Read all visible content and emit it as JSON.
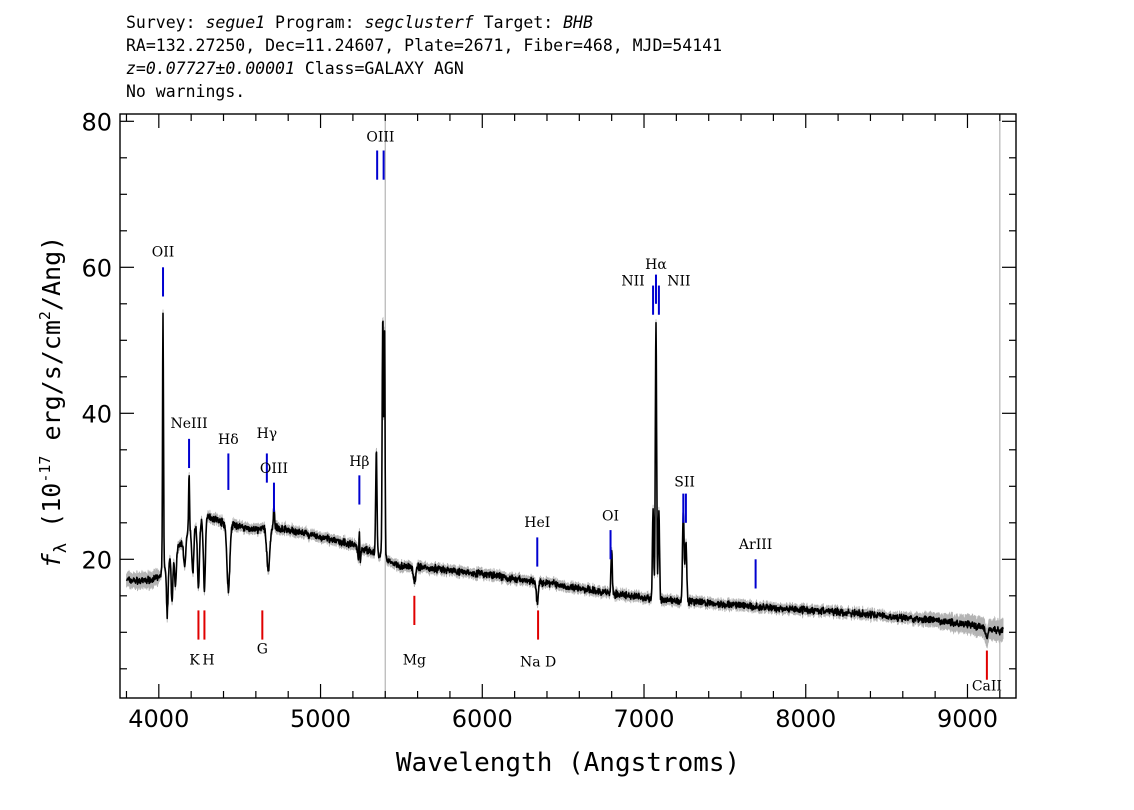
{
  "header": {
    "line1": {
      "survey_label": "Survey: ",
      "survey": "segue1",
      "program_label": " Program: ",
      "program": "segclusterf",
      "target_label": " Target: ",
      "target": "BHB"
    },
    "line2": "RA=132.27250, Dec=11.24607, Plate=2671, Fiber=468, MJD=54141",
    "line3": {
      "z": "z=0.07727±0.00001",
      "class": " Class=GALAXY AGN"
    },
    "line4": "No warnings."
  },
  "chart_data": {
    "type": "line",
    "xlabel": "Wavelength (Angstroms)",
    "ylabel": "f_λ (10^-17 erg/s/cm^2/Ang)",
    "xlim": [
      3760,
      9300
    ],
    "ylim": [
      1,
      81
    ],
    "xticks": [
      4000,
      5000,
      6000,
      7000,
      8000,
      9000
    ],
    "yticks": [
      20,
      40,
      60,
      80
    ],
    "vline_x": 5400,
    "colors": {
      "spectrum": "#000000",
      "error": "#b4b4b4",
      "emission": "#0000d0",
      "absorption": "#e00000",
      "vline": "#b4b4b4"
    },
    "continuum_points": [
      [
        3800,
        17.2
      ],
      [
        3900,
        17.0
      ],
      [
        4000,
        17.5
      ],
      [
        4100,
        21
      ],
      [
        4200,
        24
      ],
      [
        4300,
        26
      ],
      [
        4400,
        25
      ],
      [
        4500,
        24.5
      ],
      [
        4600,
        24
      ],
      [
        4700,
        24.5
      ],
      [
        4800,
        24
      ],
      [
        4900,
        23.5
      ],
      [
        5000,
        23
      ],
      [
        5100,
        22.5
      ],
      [
        5200,
        22
      ],
      [
        5300,
        21.2
      ],
      [
        5400,
        20
      ],
      [
        5500,
        19
      ],
      [
        5600,
        19
      ],
      [
        5800,
        18.5
      ],
      [
        6000,
        18
      ],
      [
        6200,
        17.3
      ],
      [
        6400,
        16.8
      ],
      [
        6600,
        16
      ],
      [
        6800,
        15.3
      ],
      [
        7000,
        14.8
      ],
      [
        7200,
        14.3
      ],
      [
        7400,
        14
      ],
      [
        7600,
        13.7
      ],
      [
        7800,
        13.3
      ],
      [
        8000,
        13.1
      ],
      [
        8200,
        12.8
      ],
      [
        8400,
        12.4
      ],
      [
        8600,
        12
      ],
      [
        8800,
        11.6
      ],
      [
        9000,
        11.1
      ],
      [
        9200,
        10.2
      ]
    ],
    "features": [
      {
        "center": 4026,
        "amp": 35,
        "width": 3
      },
      {
        "center": 4052,
        "amp": -7,
        "width": 5
      },
      {
        "center": 4082,
        "amp": -6,
        "width": 5
      },
      {
        "center": 4103,
        "amp": -5,
        "width": 5
      },
      {
        "center": 4160,
        "amp": -4,
        "width": 6
      },
      {
        "center": 4187,
        "amp": 8,
        "width": 3
      },
      {
        "center": 4210,
        "amp": -6,
        "width": 6
      },
      {
        "center": 4245,
        "amp": -9,
        "width": 6
      },
      {
        "center": 4282,
        "amp": -10,
        "width": 6
      },
      {
        "center": 4430,
        "amp": -9,
        "width": 9
      },
      {
        "center": 4677,
        "amp": -6,
        "width": 9
      },
      {
        "center": 4712,
        "amp": 3,
        "width": 3
      },
      {
        "center": 5240,
        "amp": -4,
        "width": 6
      },
      {
        "center": 5240,
        "amp": 6,
        "width": 3
      },
      {
        "center": 5345,
        "amp": 14,
        "width": 4
      },
      {
        "center": 5385,
        "amp": 33,
        "width": 4
      },
      {
        "center": 5396,
        "amp": 30,
        "width": 3
      },
      {
        "center": 5580,
        "amp": -2,
        "width": 8
      },
      {
        "center": 6340,
        "amp": -3,
        "width": 6
      },
      {
        "center": 6800,
        "amp": 6,
        "width": 4
      },
      {
        "center": 7056,
        "amp": 12,
        "width": 4
      },
      {
        "center": 7074,
        "amp": 38,
        "width": 4
      },
      {
        "center": 7092,
        "amp": 12,
        "width": 4
      },
      {
        "center": 7243,
        "amp": 12,
        "width": 5
      },
      {
        "center": 7259,
        "amp": 8,
        "width": 5
      },
      {
        "center": 9120,
        "amp": -1.5,
        "width": 6
      }
    ],
    "emission_lines": [
      {
        "label": "OII",
        "xs": [
          4026
        ],
        "y_top": 60,
        "y_bot": 56,
        "label_y": 61.5
      },
      {
        "label": "NeIII",
        "xs": [
          4187
        ],
        "y_top": 36.5,
        "y_bot": 32.5,
        "label_y": 38
      },
      {
        "label": "Hδ",
        "xs": [
          4430
        ],
        "y_top": 34.5,
        "y_bot": 29.5,
        "label_y": 35.8
      },
      {
        "label": "Hγ",
        "xs": [
          4668
        ],
        "y_top": 34.5,
        "y_bot": 30.5,
        "label_y": 36.6
      },
      {
        "label": "OIII",
        "xs": [
          4712
        ],
        "y_top": 30.5,
        "y_bot": 26.5,
        "label_y": 31.8
      },
      {
        "label": "Hβ",
        "xs": [
          5240
        ],
        "y_top": 31.5,
        "y_bot": 27.5,
        "label_y": 32.8
      },
      {
        "label": "OIII",
        "xs": [
          5350,
          5390
        ],
        "y_top": 76,
        "y_bot": 72,
        "label_y": 77.2
      },
      {
        "label": "HeI",
        "xs": [
          6340
        ],
        "y_top": 23,
        "y_bot": 19,
        "label_y": 24.4
      },
      {
        "label": "OI",
        "xs": [
          6793
        ],
        "y_top": 24,
        "y_bot": 20,
        "label_y": 25.3
      },
      {
        "label": "NII",
        "xs": [
          7056
        ],
        "y_top": 57.5,
        "y_bot": 53.5,
        "label_y": 57.5,
        "label_dx": -20
      },
      {
        "label": "Hα",
        "xs": [
          7074
        ],
        "y_top": 59,
        "y_bot": 55,
        "label_y": 59.8
      },
      {
        "label": "NII",
        "xs": [
          7092
        ],
        "y_top": 57.5,
        "y_bot": 53.5,
        "label_y": 57.5,
        "label_dx": 20
      },
      {
        "label": "SII",
        "xs": [
          7243,
          7259
        ],
        "y_top": 29,
        "y_bot": 25,
        "label_y": 30
      },
      {
        "label": "ArIII",
        "xs": [
          7690
        ],
        "y_top": 20,
        "y_bot": 16,
        "label_y": 21.4
      }
    ],
    "absorption_lines": [
      {
        "label": "K",
        "xs": [
          4245
        ],
        "y_top": 13,
        "y_bot": 9,
        "label_y": 5.6,
        "label_dx": -4
      },
      {
        "label": "H",
        "xs": [
          4282
        ],
        "y_top": 13,
        "y_bot": 9,
        "label_y": 5.6,
        "label_dx": 4
      },
      {
        "label": "G",
        "xs": [
          4640
        ],
        "y_top": 13,
        "y_bot": 9,
        "label_y": 7.1
      },
      {
        "label": "Mg",
        "xs": [
          5580
        ],
        "y_top": 15,
        "y_bot": 11,
        "label_y": 5.6
      },
      {
        "label": "Na D",
        "xs": [
          6345
        ],
        "y_top": 13,
        "y_bot": 9,
        "label_y": 5.3
      },
      {
        "label": "CaII",
        "xs": [
          9120
        ],
        "y_top": 7.5,
        "y_bot": 3.5,
        "label_y": 2
      }
    ]
  }
}
